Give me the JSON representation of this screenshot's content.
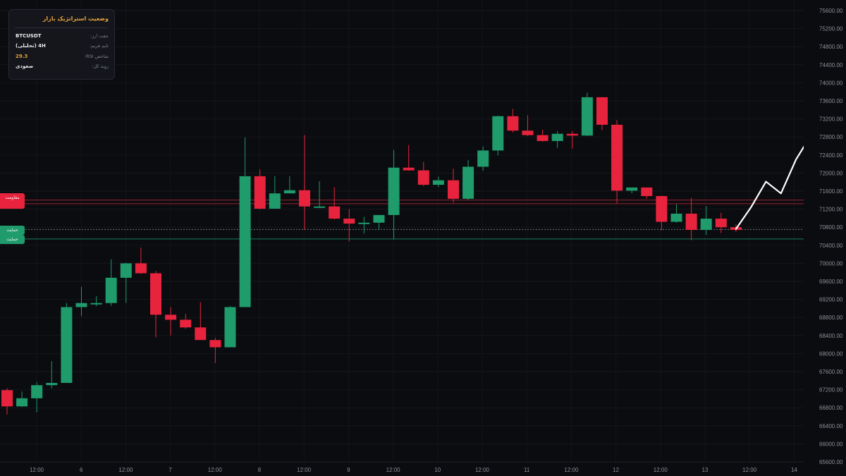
{
  "panel": {
    "title": "وضعیت استراتژیک بازار",
    "rows": [
      {
        "label": "جفت ارز:",
        "value": "BTCUSDT"
      },
      {
        "label": "تایم فریم:",
        "value": "4H (تحلیلی)"
      },
      {
        "label": "شاخص RSI:",
        "value": "29.3"
      },
      {
        "label": "روند کل:",
        "value": "صعودی"
      }
    ]
  },
  "levels": {
    "resistance_label": "مقاومت",
    "support_label_1": "حمایت",
    "support_label_2": "حمایت"
  },
  "colors": {
    "background": "#0b0c0f",
    "up": "#1f9b6c",
    "down": "#e8233d",
    "projection": "#ffffff",
    "accent": "#e8a33c",
    "resistance": "#c0283b",
    "support": "#1f9b6c"
  },
  "chart_data": {
    "type": "candlestick",
    "symbol": "BTCUSDT",
    "timeframe": "4H",
    "ylim": [
      65600,
      75600
    ],
    "yticks": [
      "75600.00",
      "75200.00",
      "74800.00",
      "74400.00",
      "74000.00",
      "73600.00",
      "73200.00",
      "72800.00",
      "72400.00",
      "72000.00",
      "71600.00",
      "71200.00",
      "70800.00",
      "70400.00",
      "70000.00",
      "69600.00",
      "69200.00",
      "68800.00",
      "68400.00",
      "68000.00",
      "67600.00",
      "67200.00",
      "66800.00",
      "66400.00",
      "66000.00",
      "65600.00"
    ],
    "xticks": [
      "12:00",
      "6",
      "12:00",
      "7",
      "12:00",
      "8",
      "12:00",
      "9",
      "12:00",
      "10",
      "12:00",
      "11",
      "12:00",
      "12",
      "12:00",
      "13",
      "12:00",
      "14"
    ],
    "candles": [
      {
        "o": 67190,
        "h": 67230,
        "l": 66650,
        "c": 66830
      },
      {
        "o": 66830,
        "h": 67160,
        "l": 66820,
        "c": 67010
      },
      {
        "o": 67010,
        "h": 67370,
        "l": 66700,
        "c": 67300
      },
      {
        "o": 67300,
        "h": 67830,
        "l": 67230,
        "c": 67350
      },
      {
        "o": 67350,
        "h": 69120,
        "l": 67350,
        "c": 69030
      },
      {
        "o": 69030,
        "h": 69480,
        "l": 68830,
        "c": 69120
      },
      {
        "o": 69120,
        "h": 69270,
        "l": 69050,
        "c": 69120
      },
      {
        "o": 69120,
        "h": 70090,
        "l": 69060,
        "c": 69680
      },
      {
        "o": 69680,
        "h": 70010,
        "l": 69120,
        "c": 70000
      },
      {
        "o": 70000,
        "h": 70350,
        "l": 69770,
        "c": 69780
      },
      {
        "o": 69780,
        "h": 69830,
        "l": 68360,
        "c": 68860
      },
      {
        "o": 68860,
        "h": 69030,
        "l": 68400,
        "c": 68750
      },
      {
        "o": 68750,
        "h": 68880,
        "l": 68550,
        "c": 68580
      },
      {
        "o": 68580,
        "h": 69140,
        "l": 68330,
        "c": 68300
      },
      {
        "o": 68300,
        "h": 68350,
        "l": 67790,
        "c": 68140
      },
      {
        "o": 68140,
        "h": 69050,
        "l": 68140,
        "c": 69030
      },
      {
        "o": 69030,
        "h": 72790,
        "l": 69030,
        "c": 71930
      },
      {
        "o": 71930,
        "h": 72080,
        "l": 71200,
        "c": 71210
      },
      {
        "o": 71210,
        "h": 71930,
        "l": 71210,
        "c": 71550
      },
      {
        "o": 71550,
        "h": 71930,
        "l": 71550,
        "c": 71620
      },
      {
        "o": 71620,
        "h": 72840,
        "l": 70740,
        "c": 71260
      },
      {
        "o": 71260,
        "h": 71820,
        "l": 71230,
        "c": 71260
      },
      {
        "o": 71260,
        "h": 71690,
        "l": 70970,
        "c": 70990
      },
      {
        "o": 70990,
        "h": 71200,
        "l": 70480,
        "c": 70880
      },
      {
        "o": 70880,
        "h": 71030,
        "l": 70660,
        "c": 70900
      },
      {
        "o": 70900,
        "h": 71070,
        "l": 70740,
        "c": 71070
      },
      {
        "o": 71070,
        "h": 72510,
        "l": 70530,
        "c": 72120
      },
      {
        "o": 72120,
        "h": 72620,
        "l": 72050,
        "c": 72060
      },
      {
        "o": 72060,
        "h": 72250,
        "l": 71710,
        "c": 71740
      },
      {
        "o": 71740,
        "h": 71920,
        "l": 71690,
        "c": 71840
      },
      {
        "o": 71840,
        "h": 72100,
        "l": 71340,
        "c": 71430
      },
      {
        "o": 71430,
        "h": 72290,
        "l": 71400,
        "c": 72140
      },
      {
        "o": 72140,
        "h": 72590,
        "l": 72050,
        "c": 72500
      },
      {
        "o": 72500,
        "h": 73270,
        "l": 72390,
        "c": 73260
      },
      {
        "o": 73260,
        "h": 73420,
        "l": 72900,
        "c": 72940
      },
      {
        "o": 72940,
        "h": 73280,
        "l": 72820,
        "c": 72840
      },
      {
        "o": 72840,
        "h": 72960,
        "l": 72700,
        "c": 72710
      },
      {
        "o": 72710,
        "h": 72930,
        "l": 72560,
        "c": 72870
      },
      {
        "o": 72870,
        "h": 72930,
        "l": 72540,
        "c": 72830
      },
      {
        "o": 72830,
        "h": 73780,
        "l": 72820,
        "c": 73680
      },
      {
        "o": 73680,
        "h": 73680,
        "l": 72950,
        "c": 73070
      },
      {
        "o": 73070,
        "h": 73170,
        "l": 71330,
        "c": 71610
      },
      {
        "o": 71610,
        "h": 71680,
        "l": 71550,
        "c": 71680
      },
      {
        "o": 71680,
        "h": 71680,
        "l": 71430,
        "c": 71490
      },
      {
        "o": 71490,
        "h": 71500,
        "l": 70730,
        "c": 70920
      },
      {
        "o": 70920,
        "h": 71310,
        "l": 70900,
        "c": 71100
      },
      {
        "o": 71100,
        "h": 71450,
        "l": 70510,
        "c": 70740
      },
      {
        "o": 70740,
        "h": 71270,
        "l": 70630,
        "c": 70990
      },
      {
        "o": 70990,
        "h": 71120,
        "l": 70670,
        "c": 70800
      },
      {
        "o": 70800,
        "h": 70860,
        "l": 70690,
        "c": 70740
      }
    ],
    "projection": [
      {
        "step": 0,
        "price": 70760
      },
      {
        "step": 1,
        "price": 71240
      },
      {
        "step": 2,
        "price": 71810
      },
      {
        "step": 3,
        "price": 71550
      },
      {
        "step": 4,
        "price": 72300
      },
      {
        "step": 5,
        "price": 72840
      }
    ],
    "resistance_levels": [
      71400,
      71320
    ],
    "support_levels": [
      70750,
      70540
    ]
  }
}
